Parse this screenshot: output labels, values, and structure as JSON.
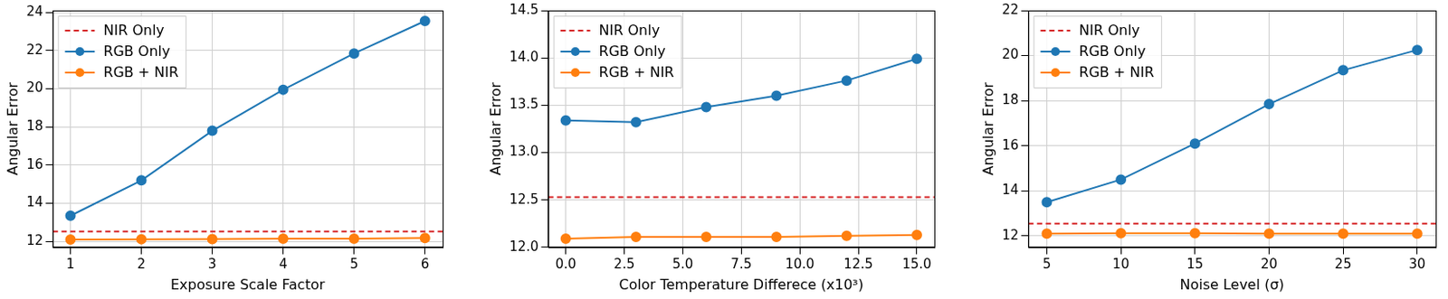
{
  "chart_data": [
    {
      "type": "line",
      "x_label": "Exposure Scale Factor",
      "y_label": "Angular Error",
      "x": [
        1,
        2,
        3,
        4,
        5,
        6
      ],
      "xlim": [
        0.75,
        6.25
      ],
      "xticks": [
        1,
        2,
        3,
        4,
        5,
        6
      ],
      "ylim": [
        11.7,
        24.1
      ],
      "yticks": [
        12,
        14,
        16,
        18,
        20,
        22,
        24
      ],
      "grid": true,
      "legend": "upper left",
      "series": [
        {
          "name": "NIR Only",
          "type": "hline",
          "color": "#d62728",
          "line_style": "dashed",
          "value": 12.53
        },
        {
          "name": "RGB Only",
          "color": "#1f77b4",
          "marker": "circle",
          "values": [
            13.35,
            15.2,
            17.8,
            19.95,
            21.85,
            23.55
          ]
        },
        {
          "name": "RGB + NIR",
          "color": "#ff7f0e",
          "marker": "circle",
          "values": [
            12.1,
            12.12,
            12.13,
            12.15,
            12.15,
            12.18
          ]
        }
      ]
    },
    {
      "type": "line",
      "x_label": "Color Temperature Differece (x10³)",
      "y_label": "Angular Error",
      "x": [
        0,
        3,
        6,
        9,
        12,
        15
      ],
      "xlim": [
        -0.75,
        15.75
      ],
      "xticks": [
        {
          "value": 0,
          "label": "0.0"
        },
        2.5,
        {
          "value": 5,
          "label": "5.0"
        },
        7.5,
        {
          "value": 10,
          "label": "10.0"
        },
        12.5,
        {
          "value": 15,
          "label": "15.0"
        }
      ],
      "ylim": [
        12.0,
        14.5
      ],
      "yticks": [
        {
          "value": 12,
          "label": "12.0"
        },
        12.5,
        {
          "value": 13,
          "label": "13.0"
        },
        13.5,
        {
          "value": 14,
          "label": "14.0"
        },
        14.5
      ],
      "grid": true,
      "legend": "upper left",
      "series": [
        {
          "name": "NIR Only",
          "type": "hline",
          "color": "#d62728",
          "line_style": "dashed",
          "value": 12.53
        },
        {
          "name": "RGB Only",
          "color": "#1f77b4",
          "marker": "circle",
          "values": [
            13.34,
            13.32,
            13.48,
            13.6,
            13.76,
            13.99
          ]
        },
        {
          "name": "RGB + NIR",
          "color": "#ff7f0e",
          "marker": "circle",
          "values": [
            12.09,
            12.11,
            12.11,
            12.11,
            12.12,
            12.13
          ]
        }
      ]
    },
    {
      "type": "line",
      "x_label": "Noise Level (σ)",
      "y_label": "Angular Error",
      "x": [
        5,
        10,
        15,
        20,
        25,
        30
      ],
      "xlim": [
        3.75,
        31.25
      ],
      "xticks": [
        5,
        10,
        15,
        20,
        25,
        30
      ],
      "ylim": [
        11.5,
        22
      ],
      "yticks": [
        12,
        14,
        16,
        18,
        20,
        22
      ],
      "grid": true,
      "legend": "upper left",
      "series": [
        {
          "name": "NIR Only",
          "type": "hline",
          "color": "#d62728",
          "line_style": "dashed",
          "value": 12.55
        },
        {
          "name": "RGB Only",
          "color": "#1f77b4",
          "marker": "circle",
          "values": [
            13.5,
            14.5,
            16.1,
            17.85,
            19.35,
            20.25
          ]
        },
        {
          "name": "RGB + NIR",
          "color": "#ff7f0e",
          "marker": "circle",
          "values": [
            12.1,
            12.12,
            12.12,
            12.1,
            12.1,
            12.1
          ]
        }
      ]
    }
  ]
}
